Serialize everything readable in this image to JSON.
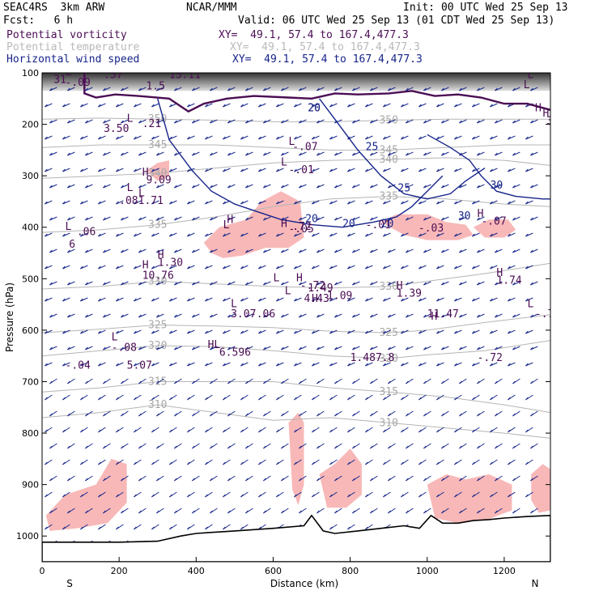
{
  "header": {
    "model": "SEAC4RS  3km ARW",
    "org": "NCAR/MMM",
    "init": "Init: 00 UTC Wed 25 Sep 13",
    "fcst": "Fcst:   6 h",
    "valid": "Valid: 06 UTC Wed 25 Sep 13 (01 CDT Wed 25 Sep 13)"
  },
  "fields": [
    {
      "label": "Potential vorticity",
      "xy": "XY=  49.1, 57.4 to 167.4,477.3",
      "color": "#4b0d54"
    },
    {
      "label": "Potential temperature",
      "xy": "XY=  49.1, 57.4 to 167.4,477.3",
      "color": "#b9b9b9"
    },
    {
      "label": "Horizontal wind speed",
      "xy": "XY=  49.1, 57.4 to 167.4,477.3",
      "color": "#16248a"
    }
  ],
  "chart_data": {
    "type": "cross-section",
    "xlabel": "Distance (km)",
    "ylabel": "Pressure (hPa)",
    "xlim": [
      0,
      1320
    ],
    "ylim": [
      1050,
      100
    ],
    "x_ticks": [
      "0",
      "200",
      "400",
      "600",
      "800",
      "1000",
      "1200"
    ],
    "y_ticks": [
      "100",
      "200",
      "300",
      "400",
      "500",
      "600",
      "700",
      "800",
      "900",
      "1000"
    ],
    "x_end_labels": {
      "left": "S",
      "right": "N"
    },
    "theta_contours": [
      {
        "label": "310",
        "points": [
          [
            0,
            770
          ],
          [
            150,
            760
          ],
          [
            300,
            745
          ],
          [
            450,
            760
          ],
          [
            600,
            775
          ],
          [
            750,
            770
          ],
          [
            900,
            780
          ],
          [
            1050,
            790
          ],
          [
            1200,
            800
          ],
          [
            1320,
            810
          ]
        ]
      },
      {
        "label": "315",
        "points": [
          [
            0,
            720
          ],
          [
            150,
            712
          ],
          [
            300,
            700
          ],
          [
            450,
            700
          ],
          [
            600,
            700
          ],
          [
            750,
            712
          ],
          [
            900,
            720
          ],
          [
            1050,
            730
          ],
          [
            1200,
            745
          ],
          [
            1320,
            760
          ]
        ]
      },
      {
        "label": "320",
        "points": [
          [
            0,
            650
          ],
          [
            150,
            640
          ],
          [
            300,
            630
          ],
          [
            450,
            632
          ],
          [
            600,
            640
          ],
          [
            750,
            650
          ],
          [
            900,
            655
          ],
          [
            1000,
            648
          ],
          [
            1150,
            640
          ],
          [
            1320,
            620
          ]
        ]
      },
      {
        "label": "325",
        "points": [
          [
            0,
            605
          ],
          [
            150,
            598
          ],
          [
            300,
            590
          ],
          [
            450,
            592
          ],
          [
            600,
            595
          ],
          [
            750,
            602
          ],
          [
            900,
            605
          ],
          [
            1000,
            600
          ],
          [
            1150,
            585
          ],
          [
            1320,
            570
          ]
        ]
      },
      {
        "label": "330",
        "points": [
          [
            0,
            520
          ],
          [
            150,
            515
          ],
          [
            300,
            505
          ],
          [
            450,
            510
          ],
          [
            600,
            515
          ],
          [
            750,
            518
          ],
          [
            900,
            515
          ],
          [
            1000,
            505
          ],
          [
            1150,
            490
          ],
          [
            1320,
            470
          ]
        ]
      },
      {
        "label": "335",
        "points": [
          [
            0,
            410
          ],
          [
            150,
            405
          ],
          [
            300,
            395
          ],
          [
            450,
            380
          ],
          [
            600,
            360
          ],
          [
            750,
            345
          ],
          [
            900,
            340
          ],
          [
            1050,
            345
          ],
          [
            1200,
            355
          ],
          [
            1320,
            360
          ]
        ]
      },
      {
        "label": "340",
        "points": [
          [
            0,
            305
          ],
          [
            150,
            300
          ],
          [
            300,
            295
          ],
          [
            450,
            285
          ],
          [
            600,
            275
          ],
          [
            750,
            270
          ],
          [
            900,
            268
          ],
          [
            1050,
            265
          ],
          [
            1200,
            270
          ],
          [
            1320,
            280
          ]
        ]
      },
      {
        "label": "345",
        "points": [
          [
            0,
            245
          ],
          [
            150,
            240
          ],
          [
            300,
            240
          ],
          [
            450,
            240
          ],
          [
            600,
            245
          ],
          [
            750,
            250
          ],
          [
            900,
            250
          ],
          [
            1050,
            245
          ],
          [
            1200,
            240
          ],
          [
            1320,
            240
          ]
        ]
      },
      {
        "label": "350",
        "points": [
          [
            0,
            190
          ],
          [
            150,
            188
          ],
          [
            300,
            190
          ],
          [
            450,
            192
          ],
          [
            600,
            195
          ],
          [
            750,
            195
          ],
          [
            900,
            192
          ],
          [
            1050,
            190
          ],
          [
            1200,
            190
          ],
          [
            1320,
            190
          ]
        ]
      }
    ],
    "pv_contours": [
      {
        "name": "tropopause",
        "points": [
          [
            110,
            100
          ],
          [
            110,
            140
          ],
          [
            140,
            148
          ],
          [
            190,
            142
          ],
          [
            250,
            145
          ],
          [
            330,
            150
          ],
          [
            380,
            175
          ],
          [
            420,
            160
          ],
          [
            480,
            150
          ],
          [
            550,
            145
          ],
          [
            640,
            148
          ],
          [
            700,
            150
          ],
          [
            760,
            140
          ],
          [
            820,
            142
          ],
          [
            900,
            140
          ],
          [
            960,
            135
          ],
          [
            1020,
            145
          ],
          [
            1080,
            142
          ],
          [
            1140,
            148
          ],
          [
            1200,
            160
          ],
          [
            1260,
            160
          ],
          [
            1320,
            172
          ]
        ]
      }
    ],
    "pv_labels": [
      "L",
      "31",
      ".57",
      "15.11",
      "1.5",
      "L",
      "3.50",
      ".21",
      "L",
      "-.07",
      "L",
      "-.01",
      "H",
      "9.09",
      "L",
      "L",
      ".081.71",
      "L",
      ".06",
      "6",
      "H",
      "1.30",
      "H",
      "10.76",
      "H",
      "1.49",
      "L",
      "-.72",
      "H",
      "1.09",
      "L",
      "4.43",
      "H",
      "1.39",
      "H",
      "1.74",
      "L",
      "3.07",
      "-.06",
      "H",
      "11.47",
      "L",
      "-.08",
      "H",
      "-.05",
      "H",
      "-.07",
      "H",
      "32",
      "L",
      "L",
      "H",
      ".72",
      "L",
      "-.71",
      "HL",
      "6.596",
      "1.487.8",
      "5.07",
      "-.04",
      "-.72",
      "20",
      "H",
      "L",
      "-.01",
      "-.09"
    ],
    "wind_contours": [
      {
        "label": "20",
        "points": [
          [
            300,
            150
          ],
          [
            330,
            230
          ],
          [
            390,
            290
          ],
          [
            440,
            330
          ],
          [
            500,
            355
          ],
          [
            560,
            370
          ],
          [
            620,
            385
          ],
          [
            700,
            395
          ],
          [
            780,
            400
          ],
          [
            860,
            390
          ],
          [
            920,
            380
          ],
          [
            960,
            360
          ],
          [
            1000,
            330
          ],
          [
            1040,
            300
          ]
        ]
      },
      {
        "label": "25",
        "points": [
          [
            720,
            150
          ],
          [
            760,
            190
          ],
          [
            820,
            250
          ],
          [
            880,
            300
          ],
          [
            940,
            335
          ],
          [
            1000,
            345
          ],
          [
            1060,
            335
          ],
          [
            1100,
            310
          ],
          [
            1150,
            285
          ]
        ]
      },
      {
        "label": "30",
        "points": [
          [
            1000,
            220
          ],
          [
            1060,
            245
          ],
          [
            1110,
            270
          ],
          [
            1140,
            300
          ],
          [
            1180,
            330
          ],
          [
            1230,
            340
          ],
          [
            1300,
            345
          ],
          [
            1320,
            345
          ]
        ]
      }
    ],
    "wind_labels": [
      "20",
      "25",
      "30",
      "20",
      "20"
    ],
    "pv_shaded_regions": [
      {
        "points": [
          [
            10,
            960
          ],
          [
            60,
            920
          ],
          [
            140,
            900
          ],
          [
            180,
            850
          ],
          [
            220,
            860
          ],
          [
            220,
            935
          ],
          [
            170,
            975
          ],
          [
            90,
            985
          ],
          [
            20,
            990
          ]
        ]
      },
      {
        "points": [
          [
            420,
            430
          ],
          [
            460,
            400
          ],
          [
            530,
            385
          ],
          [
            570,
            350
          ],
          [
            620,
            330
          ],
          [
            670,
            350
          ],
          [
            680,
            420
          ],
          [
            640,
            440
          ],
          [
            580,
            440
          ],
          [
            520,
            455
          ],
          [
            470,
            460
          ],
          [
            440,
            450
          ]
        ]
      },
      {
        "label": "-.03",
        "points": [
          [
            880,
            390
          ],
          [
            920,
            375
          ],
          [
            1000,
            375
          ],
          [
            1050,
            390
          ],
          [
            1100,
            395
          ],
          [
            1120,
            415
          ],
          [
            1080,
            425
          ],
          [
            1000,
            425
          ],
          [
            940,
            415
          ]
        ]
      },
      {
        "points": [
          [
            270,
            290
          ],
          [
            300,
            275
          ],
          [
            330,
            270
          ],
          [
            330,
            300
          ],
          [
            300,
            310
          ]
        ]
      },
      {
        "points": [
          [
            1120,
            400
          ],
          [
            1160,
            385
          ],
          [
            1210,
            385
          ],
          [
            1230,
            405
          ],
          [
            1200,
            420
          ],
          [
            1150,
            420
          ]
        ]
      },
      {
        "points": [
          [
            640,
            780
          ],
          [
            665,
            760
          ],
          [
            680,
            780
          ],
          [
            680,
            900
          ],
          [
            665,
            940
          ],
          [
            650,
            910
          ]
        ]
      },
      {
        "points": [
          [
            720,
            880
          ],
          [
            760,
            860
          ],
          [
            800,
            830
          ],
          [
            830,
            860
          ],
          [
            830,
            920
          ],
          [
            790,
            945
          ],
          [
            740,
            945
          ]
        ]
      },
      {
        "points": [
          [
            1000,
            900
          ],
          [
            1050,
            880
          ],
          [
            1100,
            890
          ],
          [
            1160,
            880
          ],
          [
            1220,
            900
          ],
          [
            1220,
            950
          ],
          [
            1150,
            970
          ],
          [
            1080,
            975
          ],
          [
            1020,
            965
          ]
        ]
      },
      {
        "points": [
          [
            1270,
            880
          ],
          [
            1300,
            860
          ],
          [
            1320,
            870
          ],
          [
            1320,
            950
          ],
          [
            1290,
            955
          ],
          [
            1270,
            930
          ]
        ]
      }
    ],
    "terrain": [
      [
        0,
        1012
      ],
      [
        100,
        1012
      ],
      [
        200,
        1012
      ],
      [
        300,
        1010
      ],
      [
        360,
        1000
      ],
      [
        400,
        995
      ],
      [
        500,
        990
      ],
      [
        600,
        985
      ],
      [
        680,
        980
      ],
      [
        700,
        960
      ],
      [
        730,
        990
      ],
      [
        760,
        995
      ],
      [
        820,
        990
      ],
      [
        880,
        985
      ],
      [
        940,
        980
      ],
      [
        980,
        985
      ],
      [
        1010,
        960
      ],
      [
        1040,
        975
      ],
      [
        1080,
        975
      ],
      [
        1120,
        970
      ],
      [
        1160,
        968
      ],
      [
        1200,
        965
      ],
      [
        1260,
        962
      ],
      [
        1320,
        960
      ]
    ],
    "wind_barbs": "uniform arrow grid"
  }
}
